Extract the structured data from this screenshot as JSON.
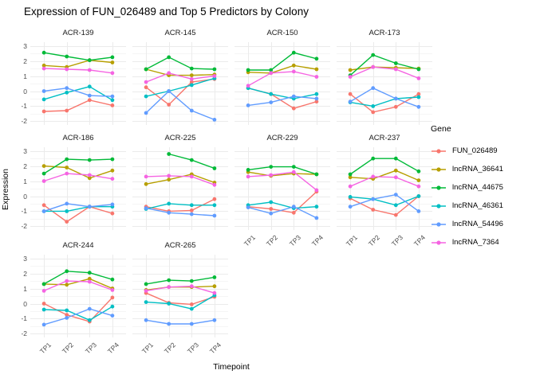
{
  "title": "Expression of FUN_026489 and Top 5 Predictors by Colony",
  "axes": {
    "x_title": "Timepoint",
    "y_title": "Expression",
    "x_ticks": [
      "TP1",
      "TP2",
      "TP3",
      "TP4"
    ],
    "y_ticks": [
      "3",
      "2",
      "1",
      "0",
      "-1",
      "-2"
    ]
  },
  "legend": {
    "title": "Gene",
    "position": "right"
  },
  "chart_data": {
    "type": "line",
    "title": "Expression of FUN_026489 and Top 5 Predictors by Colony",
    "xlabel": "Timepoint",
    "ylabel": "Expression",
    "x_categories": [
      "TP1",
      "TP2",
      "TP3",
      "TP4"
    ],
    "ylim": [
      -2,
      3
    ],
    "y_major_ticks": [
      3,
      2,
      1,
      0,
      -1,
      -2
    ],
    "grid": true,
    "legend_title": "Gene",
    "series": [
      {
        "name": "FUN_026489",
        "color": "#F8766D"
      },
      {
        "name": "lncRNA_36641",
        "color": "#B79F00"
      },
      {
        "name": "lncRNA_44675",
        "color": "#00BA38"
      },
      {
        "name": "lncRNA_46361",
        "color": "#00BFC4"
      },
      {
        "name": "lncRNA_54496",
        "color": "#619CFF"
      },
      {
        "name": "lncRNA_7364",
        "color": "#F564E2"
      }
    ],
    "facets": [
      {
        "name": "ACR-139",
        "row": 0,
        "col": 0,
        "values": [
          [
            -1.35,
            -1.3,
            -0.6,
            -0.95
          ],
          [
            1.7,
            1.6,
            2.05,
            1.9
          ],
          [
            2.55,
            2.3,
            2.05,
            2.25
          ],
          [
            -0.55,
            -0.1,
            0.3,
            -0.6
          ],
          [
            0.0,
            0.2,
            -0.3,
            -0.35
          ],
          [
            1.5,
            1.45,
            1.4,
            1.2
          ]
        ]
      },
      {
        "name": "ACR-145",
        "row": 0,
        "col": 1,
        "values": [
          [
            0.25,
            -0.9,
            0.6,
            0.8
          ],
          [
            1.45,
            1.05,
            1.05,
            1.1
          ],
          [
            1.45,
            2.25,
            1.5,
            1.45
          ],
          [
            -0.35,
            0.0,
            0.4,
            0.85
          ],
          [
            -1.45,
            0.0,
            -1.3,
            -1.9
          ],
          [
            0.6,
            1.2,
            0.8,
            1.0
          ]
        ]
      },
      {
        "name": "ACR-150",
        "row": 0,
        "col": 2,
        "values": [
          [
            0.2,
            -0.2,
            -1.15,
            -0.7
          ],
          [
            1.25,
            1.2,
            1.7,
            1.45
          ],
          [
            1.4,
            1.4,
            2.55,
            2.15
          ],
          [
            0.2,
            -0.2,
            -0.5,
            -0.2
          ],
          [
            -0.95,
            -0.75,
            -0.35,
            -0.5
          ],
          [
            0.35,
            1.2,
            1.3,
            0.95
          ]
        ]
      },
      {
        "name": "ACR-173",
        "row": 0,
        "col": 3,
        "values": [
          [
            -0.2,
            -1.4,
            -1.05,
            -0.2
          ],
          [
            1.4,
            1.6,
            1.55,
            1.5
          ],
          [
            1.05,
            2.4,
            1.85,
            1.45
          ],
          [
            -0.75,
            -1.0,
            -0.5,
            -0.4
          ],
          [
            -0.7,
            0.2,
            -0.5,
            -1.05
          ],
          [
            0.95,
            1.6,
            1.45,
            0.85
          ]
        ]
      },
      {
        "name": "ACR-186",
        "row": 1,
        "col": 0,
        "values": [
          [
            -0.6,
            -1.7,
            -0.7,
            -1.15
          ],
          [
            2.0,
            1.9,
            1.2,
            1.7
          ],
          [
            1.5,
            2.45,
            2.4,
            2.45
          ],
          [
            -1.0,
            -1.0,
            -0.7,
            -0.7
          ],
          [
            -1.0,
            -0.5,
            -0.7,
            -0.55
          ],
          [
            1.0,
            1.5,
            1.4,
            1.15
          ]
        ]
      },
      {
        "name": "ACR-225",
        "row": 1,
        "col": 1,
        "values": [
          [
            -0.7,
            -1.0,
            -0.95,
            -0.2
          ],
          [
            0.8,
            1.1,
            1.45,
            0.9
          ],
          [
            null,
            2.8,
            2.4,
            1.85
          ],
          [
            -0.85,
            -0.5,
            -0.6,
            -0.6
          ],
          [
            -0.8,
            -1.1,
            -1.2,
            -1.3
          ],
          [
            1.3,
            1.35,
            1.3,
            0.75
          ]
        ]
      },
      {
        "name": "ACR-229",
        "row": 1,
        "col": 2,
        "values": [
          [
            -0.7,
            -0.85,
            -1.1,
            0.3
          ],
          [
            1.6,
            1.35,
            1.5,
            1.45
          ],
          [
            1.75,
            1.95,
            1.95,
            1.45
          ],
          [
            -0.6,
            -0.4,
            -0.8,
            -0.7
          ],
          [
            -0.75,
            -1.15,
            -0.7,
            -1.45
          ],
          [
            1.3,
            1.4,
            1.6,
            0.4
          ]
        ]
      },
      {
        "name": "ACR-237",
        "row": 1,
        "col": 3,
        "values": [
          [
            -0.15,
            -0.9,
            -1.25,
            0.0
          ],
          [
            1.25,
            1.15,
            1.7,
            1.05
          ],
          [
            1.45,
            2.5,
            2.5,
            1.65
          ],
          [
            -0.05,
            -0.2,
            -0.6,
            0.0
          ],
          [
            -0.7,
            -0.2,
            0.1,
            -1.0
          ],
          [
            0.65,
            1.3,
            1.25,
            0.65
          ]
        ]
      },
      {
        "name": "ACR-244",
        "row": 2,
        "col": 0,
        "values": [
          [
            0.0,
            -0.75,
            -1.2,
            0.4
          ],
          [
            1.3,
            1.25,
            1.65,
            1.0
          ],
          [
            1.3,
            2.15,
            2.05,
            1.6
          ],
          [
            -0.4,
            -0.45,
            -1.1,
            -0.2
          ],
          [
            -1.4,
            -0.95,
            -0.35,
            -0.8
          ],
          [
            0.85,
            1.5,
            1.45,
            0.9
          ]
        ]
      },
      {
        "name": "ACR-265",
        "row": 2,
        "col": 1,
        "values": [
          [
            0.7,
            0.05,
            -0.05,
            0.45
          ],
          [
            0.9,
            1.1,
            1.1,
            1.15
          ],
          [
            1.3,
            1.55,
            1.5,
            1.75
          ],
          [
            0.1,
            0.0,
            -0.35,
            0.55
          ],
          [
            -1.1,
            -1.35,
            -1.35,
            -1.1
          ],
          [
            0.85,
            1.1,
            1.15,
            0.7
          ]
        ]
      }
    ]
  }
}
